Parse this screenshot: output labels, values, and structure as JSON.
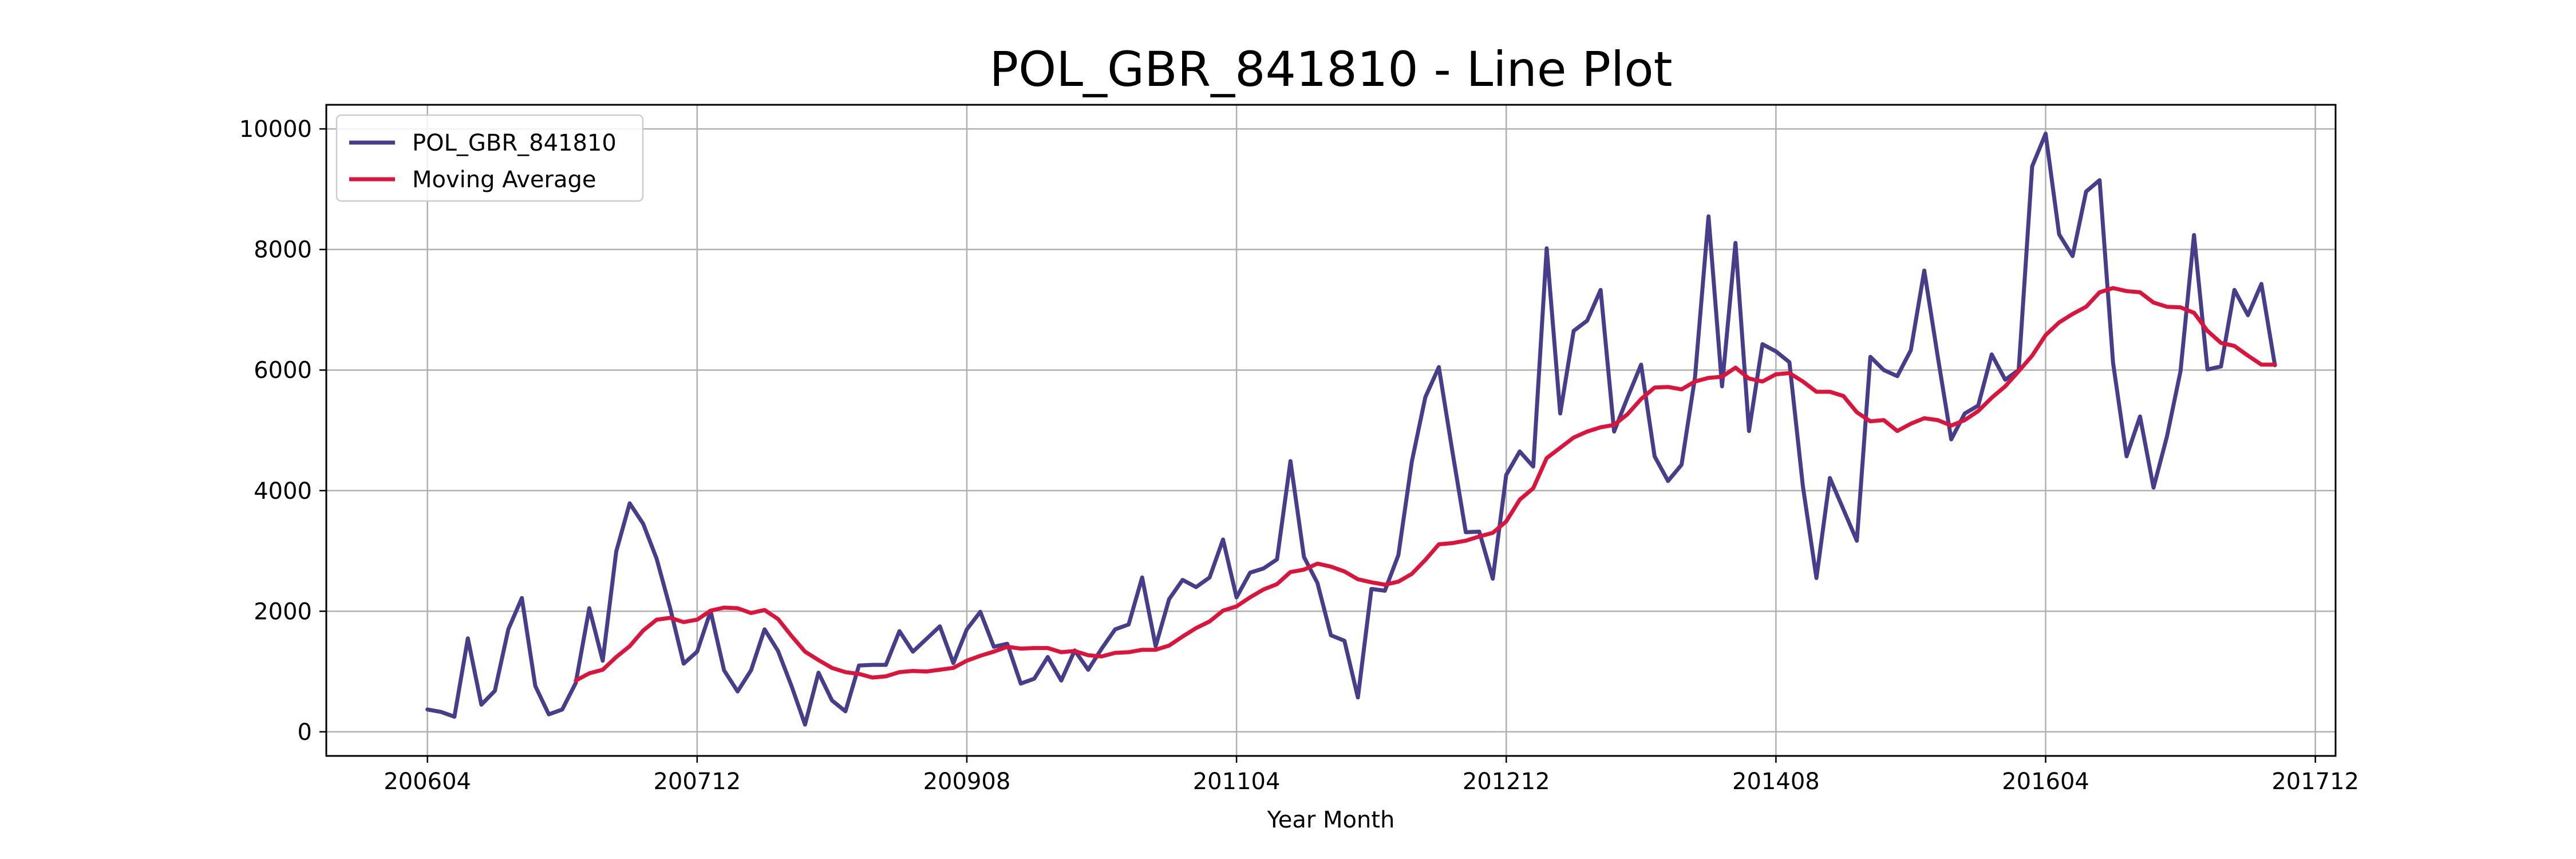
{
  "chart_data": {
    "type": "line",
    "title": "POL_GBR_841810 - Line Plot",
    "xlabel": "Year Month",
    "ylabel": "",
    "xlim": [
      -7.5,
      141.5
    ],
    "ylim": [
      -400,
      10400
    ],
    "grid": true,
    "legend_position": "upper-left",
    "x_ticks": [
      {
        "label": "200604",
        "pos": 0
      },
      {
        "label": "200712",
        "pos": 20
      },
      {
        "label": "200908",
        "pos": 40
      },
      {
        "label": "201104",
        "pos": 60
      },
      {
        "label": "201212",
        "pos": 80
      },
      {
        "label": "201408",
        "pos": 100
      },
      {
        "label": "201604",
        "pos": 120
      },
      {
        "label": "201712",
        "pos": 140
      }
    ],
    "y_ticks": [
      0,
      2000,
      4000,
      6000,
      8000,
      10000
    ],
    "x_start": 0,
    "series": [
      {
        "name": "POL_GBR_841810",
        "color": "#483D8B",
        "start_index": 0,
        "values": [
          370,
          330,
          250,
          1550,
          450,
          680,
          1700,
          2220,
          760,
          290,
          370,
          810,
          2050,
          1180,
          2990,
          3790,
          3450,
          2870,
          2050,
          1130,
          1330,
          2000,
          1020,
          670,
          1020,
          1700,
          1340,
          760,
          120,
          980,
          520,
          340,
          1100,
          1110,
          1110,
          1670,
          1330,
          1540,
          1750,
          1140,
          1700,
          1990,
          1410,
          1460,
          800,
          880,
          1240,
          850,
          1350,
          1030,
          1380,
          1700,
          1780,
          2560,
          1420,
          2200,
          2520,
          2400,
          2560,
          3190,
          2230,
          2640,
          2710,
          2860,
          4490,
          2900,
          2470,
          1600,
          1510,
          570,
          2370,
          2340,
          2930,
          4480,
          5550,
          6050,
          4660,
          3310,
          3320,
          2540,
          4260,
          4650,
          4400,
          8020,
          5280,
          6650,
          6820,
          7330,
          4980,
          5550,
          6090,
          4570,
          4160,
          4430,
          5880,
          8550,
          5730,
          8110,
          4990,
          6430,
          6310,
          6130,
          4070,
          2550,
          4210,
          3690,
          3170,
          6220,
          6000,
          5900,
          6330,
          7650,
          6220,
          4850,
          5280,
          5410,
          6260,
          5840,
          6000,
          9380,
          9920,
          8250,
          7890,
          8960,
          9150,
          6120,
          4570,
          5230,
          4050,
          4900,
          5980,
          8240,
          6010,
          6060,
          7330,
          6910,
          7430,
          6080
        ]
      },
      {
        "name": "Moving Average",
        "color": "#DC143C",
        "start_index": 11,
        "values": [
          850,
          970,
          1030,
          1240,
          1420,
          1680,
          1860,
          1890,
          1820,
          1860,
          2010,
          2060,
          2050,
          1970,
          2020,
          1870,
          1590,
          1330,
          1190,
          1060,
          990,
          960,
          900,
          920,
          990,
          1010,
          1000,
          1030,
          1060,
          1180,
          1260,
          1330,
          1410,
          1380,
          1390,
          1390,
          1320,
          1340,
          1270,
          1250,
          1310,
          1320,
          1360,
          1360,
          1430,
          1580,
          1720,
          1830,
          2010,
          2080,
          2230,
          2360,
          2450,
          2650,
          2690,
          2790,
          2740,
          2660,
          2530,
          2480,
          2440,
          2490,
          2620,
          2850,
          3110,
          3130,
          3170,
          3240,
          3300,
          3490,
          3850,
          4040,
          4540,
          4710,
          4880,
          4980,
          5050,
          5090,
          5270,
          5520,
          5710,
          5720,
          5680,
          5810,
          5870,
          5890,
          6040,
          5860,
          5810,
          5930,
          5950,
          5810,
          5640,
          5640,
          5570,
          5300,
          5150,
          5170,
          4990,
          5110,
          5200,
          5170,
          5080,
          5170,
          5320,
          5540,
          5730,
          5980,
          6240,
          6580,
          6790,
          6930,
          7050,
          7290,
          7360,
          7310,
          7290,
          7120,
          7050,
          7040,
          6950,
          6650,
          6450,
          6400,
          6240,
          6090,
          6090
        ]
      }
    ]
  }
}
